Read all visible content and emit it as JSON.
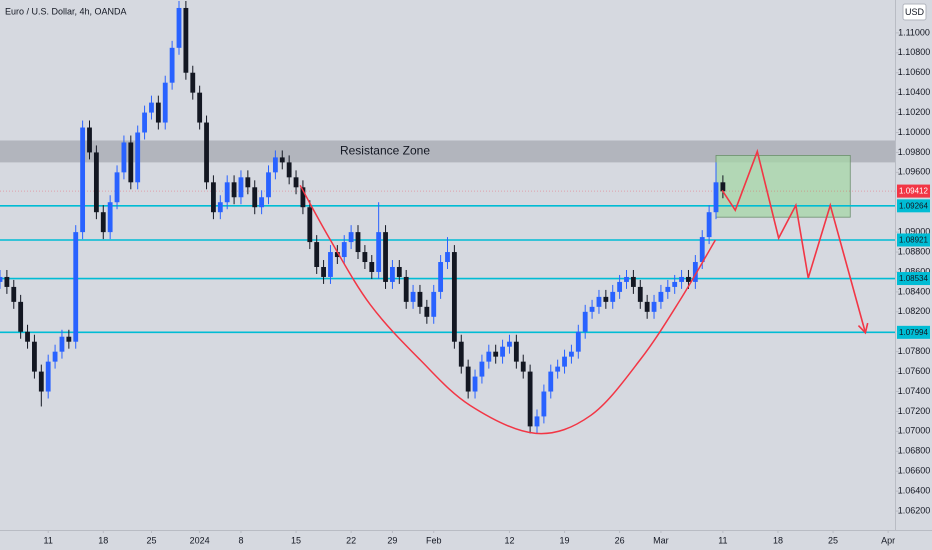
{
  "chart_data": {
    "type": "candlestick",
    "title": "Euro / U.S. Dollar, 4h, OANDA",
    "currency": "USD",
    "up_color": "#2962ff",
    "down_color": "#131722",
    "xlim": [
      0,
      130
    ],
    "ylim": [
      1.0601,
      1.1133
    ],
    "xticks": [
      {
        "value": 7,
        "label": "11"
      },
      {
        "value": 15,
        "label": "18"
      },
      {
        "value": 22,
        "label": "25"
      },
      {
        "value": 29,
        "label": "2024"
      },
      {
        "value": 35,
        "label": "8"
      },
      {
        "value": 43,
        "label": "15"
      },
      {
        "value": 51,
        "label": "22"
      },
      {
        "value": 57,
        "label": "29"
      },
      {
        "value": 63,
        "label": "Feb"
      },
      {
        "value": 74,
        "label": "12"
      },
      {
        "value": 82,
        "label": "19"
      },
      {
        "value": 90,
        "label": "26"
      },
      {
        "value": 96,
        "label": "Mar"
      },
      {
        "value": 105,
        "label": "11"
      },
      {
        "value": 113,
        "label": "18"
      },
      {
        "value": 121,
        "label": "25"
      },
      {
        "value": 129,
        "label": "Apr"
      }
    ],
    "yticks": [
      {
        "value": 1.11,
        "label": "1.11000"
      },
      {
        "value": 1.108,
        "label": "1.10800"
      },
      {
        "value": 1.106,
        "label": "1.10600"
      },
      {
        "value": 1.104,
        "label": "1.10400"
      },
      {
        "value": 1.102,
        "label": "1.10200"
      },
      {
        "value": 1.1,
        "label": "1.10000"
      },
      {
        "value": 1.098,
        "label": "1.09800"
      },
      {
        "value": 1.096,
        "label": "1.09600"
      },
      {
        "value": 1.09,
        "label": "1.09000"
      },
      {
        "value": 1.088,
        "label": "1.08800"
      },
      {
        "value": 1.086,
        "label": "1.08600"
      },
      {
        "value": 1.084,
        "label": "1.08400"
      },
      {
        "value": 1.082,
        "label": "1.08200"
      },
      {
        "value": 1.078,
        "label": "1.07800"
      },
      {
        "value": 1.076,
        "label": "1.07600"
      },
      {
        "value": 1.074,
        "label": "1.07400"
      },
      {
        "value": 1.072,
        "label": "1.07200"
      },
      {
        "value": 1.07,
        "label": "1.07000"
      },
      {
        "value": 1.068,
        "label": "1.06800"
      },
      {
        "value": 1.066,
        "label": "1.06600"
      },
      {
        "value": 1.064,
        "label": "1.06400"
      },
      {
        "value": 1.062,
        "label": "1.06200"
      }
    ],
    "open": [
      1.085,
      1.0855,
      1.0845,
      1.083,
      1.08,
      1.079,
      1.076,
      1.074,
      1.077,
      1.078,
      1.0795,
      1.079,
      1.09,
      1.1005,
      1.098,
      1.092,
      1.09,
      1.093,
      1.096,
      1.099,
      1.095,
      1.1,
      1.102,
      1.103,
      1.101,
      1.105,
      1.1085,
      1.1125,
      1.106,
      1.104,
      1.101,
      1.095,
      1.092,
      1.093,
      1.095,
      1.0935,
      1.0955,
      1.0945,
      1.0925,
      1.0935,
      1.096,
      1.0975,
      1.097,
      1.0955,
      1.0945,
      1.0925,
      1.089,
      1.0865,
      1.0855,
      1.088,
      1.0875,
      1.089,
      1.09,
      1.088,
      1.087,
      1.086,
      1.09,
      1.085,
      1.0865,
      1.0855,
      1.083,
      1.084,
      1.0825,
      1.0815,
      1.084,
      1.087,
      1.088,
      1.079,
      1.0765,
      1.074,
      1.0755,
      1.077,
      1.078,
      1.0775,
      1.0785,
      1.079,
      1.077,
      1.076,
      1.0705,
      1.0715,
      1.074,
      1.076,
      1.0765,
      1.0775,
      1.078,
      1.08,
      1.082,
      1.0825,
      1.0835,
      1.083,
      1.084,
      1.085,
      1.0855,
      1.0845,
      1.083,
      1.082,
      1.083,
      1.084,
      1.0845,
      1.085,
      1.0855,
      1.085,
      1.087,
      1.0895,
      1.092,
      1.095
    ],
    "high": [
      1.0862,
      1.0862,
      1.0852,
      1.0837,
      1.0807,
      1.0797,
      1.0767,
      1.0777,
      1.0787,
      1.0802,
      1.0802,
      1.0907,
      1.1012,
      1.1012,
      1.0987,
      1.0927,
      1.0937,
      1.0967,
      1.0997,
      1.0997,
      1.1007,
      1.1027,
      1.1037,
      1.1037,
      1.1057,
      1.1092,
      1.1132,
      1.1132,
      1.1067,
      1.1047,
      1.1017,
      1.0957,
      1.0937,
      1.0957,
      1.0957,
      1.0962,
      1.0962,
      1.0952,
      1.0942,
      1.0967,
      1.0982,
      1.0982,
      1.0977,
      1.0962,
      1.0952,
      1.0932,
      1.0897,
      1.0872,
      1.0887,
      1.0887,
      1.0897,
      1.0907,
      1.0907,
      1.0887,
      1.0877,
      1.093,
      1.0907,
      1.0872,
      1.0872,
      1.0862,
      1.0847,
      1.0847,
      1.0832,
      1.0847,
      1.0877,
      1.0895,
      1.0887,
      1.0797,
      1.0772,
      1.0762,
      1.0777,
      1.0787,
      1.0787,
      1.0792,
      1.0797,
      1.0797,
      1.0777,
      1.0767,
      1.0722,
      1.0747,
      1.0767,
      1.0772,
      1.0782,
      1.0787,
      1.0807,
      1.0827,
      1.0832,
      1.0842,
      1.0842,
      1.0847,
      1.0857,
      1.0862,
      1.0862,
      1.0852,
      1.0837,
      1.0837,
      1.0847,
      1.0852,
      1.0857,
      1.0862,
      1.0862,
      1.0877,
      1.0902,
      1.0927,
      1.097,
      1.0957
    ],
    "low": [
      1.0843,
      1.0838,
      1.0823,
      1.0793,
      1.0783,
      1.0753,
      1.0725,
      1.0733,
      1.0763,
      1.0773,
      1.0783,
      1.0783,
      1.0893,
      1.0973,
      1.0913,
      1.0893,
      1.0893,
      1.0923,
      1.0953,
      1.0943,
      1.0943,
      1.0993,
      1.1013,
      1.1003,
      1.1003,
      1.1043,
      1.1078,
      1.1053,
      1.1033,
      1.1003,
      1.0943,
      1.0913,
      1.0913,
      1.0923,
      1.0928,
      1.0928,
      1.0938,
      1.0918,
      1.0918,
      1.0928,
      1.0953,
      1.0963,
      1.0948,
      1.0938,
      1.0918,
      1.0883,
      1.0858,
      1.0848,
      1.0848,
      1.0868,
      1.0868,
      1.0883,
      1.0873,
      1.0863,
      1.0853,
      1.0853,
      1.0843,
      1.0843,
      1.0848,
      1.0823,
      1.0823,
      1.0818,
      1.0808,
      1.0808,
      1.0833,
      1.0863,
      1.0783,
      1.0758,
      1.0733,
      1.0733,
      1.0748,
      1.0763,
      1.0768,
      1.0768,
      1.0778,
      1.0763,
      1.0753,
      1.0698,
      1.0698,
      1.0708,
      1.0733,
      1.0753,
      1.0758,
      1.0768,
      1.0773,
      1.0793,
      1.0813,
      1.0818,
      1.0823,
      1.0823,
      1.0833,
      1.0843,
      1.0838,
      1.0823,
      1.0813,
      1.0813,
      1.0823,
      1.0833,
      1.0838,
      1.0843,
      1.0843,
      1.0843,
      1.0863,
      1.0888,
      1.0913,
      1.0934
    ],
    "close": [
      1.0855,
      1.0845,
      1.083,
      1.08,
      1.079,
      1.076,
      1.074,
      1.077,
      1.078,
      1.0795,
      1.079,
      1.09,
      1.1005,
      1.098,
      1.092,
      1.09,
      1.093,
      1.096,
      1.099,
      1.095,
      1.1,
      1.102,
      1.103,
      1.101,
      1.105,
      1.1085,
      1.1125,
      1.106,
      1.104,
      1.101,
      1.095,
      1.092,
      1.093,
      1.095,
      1.0935,
      1.0955,
      1.0945,
      1.0925,
      1.0935,
      1.096,
      1.0975,
      1.097,
      1.0955,
      1.0945,
      1.0925,
      1.089,
      1.0865,
      1.0855,
      1.088,
      1.0875,
      1.089,
      1.09,
      1.088,
      1.087,
      1.086,
      1.09,
      1.085,
      1.0865,
      1.0855,
      1.083,
      1.084,
      1.0825,
      1.0815,
      1.084,
      1.087,
      1.088,
      1.079,
      1.0765,
      1.074,
      1.0755,
      1.077,
      1.078,
      1.0775,
      1.0785,
      1.079,
      1.077,
      1.076,
      1.0705,
      1.0715,
      1.074,
      1.076,
      1.0765,
      1.0775,
      1.078,
      1.08,
      1.082,
      1.0825,
      1.0835,
      1.083,
      1.084,
      1.085,
      1.0855,
      1.0845,
      1.083,
      1.082,
      1.083,
      1.084,
      1.0845,
      1.085,
      1.0855,
      1.085,
      1.087,
      1.0895,
      1.092,
      1.095,
      1.0941
    ],
    "zone": {
      "label": "Resistance Zone",
      "top": 1.0992,
      "bottom": 1.097,
      "color": "#9598a1"
    },
    "levels": [
      1.09264,
      1.08921,
      1.08534,
      1.07994
    ],
    "level_color": "#00bcd4",
    "last_price": 1.09412,
    "last_price_color": "#f23645",
    "target_box": {
      "x": [
        104,
        123.5
      ],
      "y": [
        1.0915,
        1.0977
      ],
      "color": "#a5d6a7"
    },
    "projection": {
      "x": [
        104.9,
        106.8,
        110,
        113.1,
        115.6,
        117.4,
        120.6,
        125.7
      ],
      "y": [
        1.0942,
        1.0922,
        1.0981,
        1.0894,
        1.0927,
        1.0854,
        1.0927,
        1.0799
      ],
      "color": "#f23645"
    },
    "curve": {
      "x": [
        43.6,
        48,
        53.8,
        61,
        68.3,
        77.8,
        85.8,
        93,
        98.8,
        103.9
      ],
      "y": [
        1.0947,
        1.0892,
        1.0827,
        1.0772,
        1.0726,
        1.0698,
        1.0716,
        1.0772,
        1.0832,
        1.0892
      ],
      "color": "#f23645"
    }
  }
}
